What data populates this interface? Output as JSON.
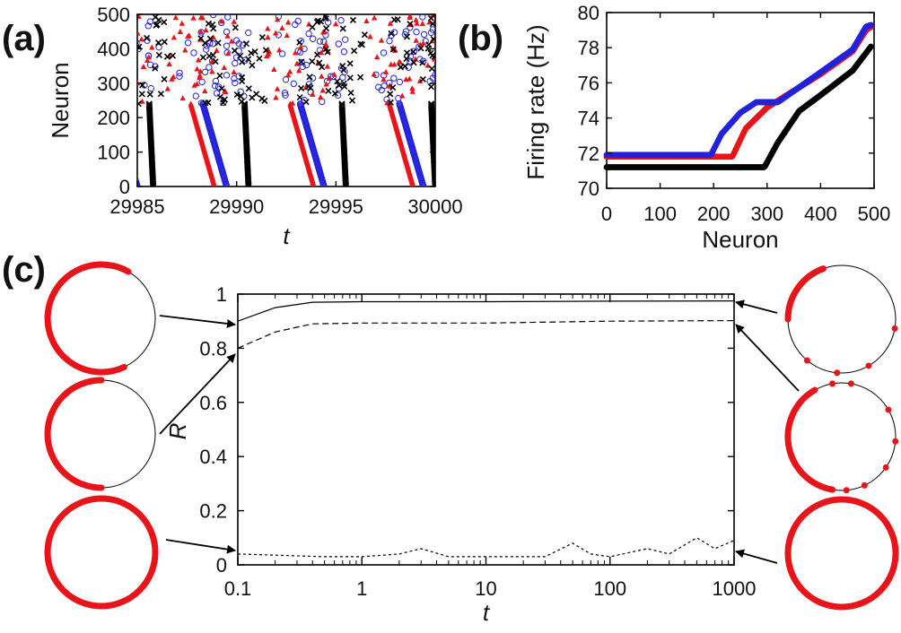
{
  "colors": {
    "red": "#e8141a",
    "blue": "#2222dd",
    "black": "#000000"
  },
  "panels": {
    "a": {
      "label": "(a)"
    },
    "b": {
      "label": "(b)"
    },
    "c": {
      "label": "(c)"
    }
  },
  "chart_data": [
    {
      "id": "a",
      "type": "scatter",
      "xlabel": "t",
      "ylabel": "Neuron",
      "xlim": [
        29985,
        30000
      ],
      "ylim": [
        0,
        500
      ],
      "xticks": [
        "29985",
        "29990",
        "29995",
        "30000"
      ],
      "yticks": [
        "0",
        "100",
        "200",
        "300",
        "400",
        "500"
      ],
      "series": [
        {
          "marker": "circle",
          "color": "blue",
          "waves": [
            [
              29985.0,
              0
            ],
            [
              29985.0,
              500
            ],
            [
              29989.5,
              0
            ],
            [
              29989.5,
              500
            ],
            [
              29994.4,
              0
            ],
            [
              29994.4,
              500
            ],
            [
              29999.4,
              0
            ],
            [
              29999.4,
              500
            ]
          ]
        },
        {
          "marker": "triangle",
          "color": "red",
          "waves": [
            [
              29984.7,
              0
            ],
            [
              29984.7,
              500
            ],
            [
              29988.9,
              0
            ],
            [
              29988.9,
              500
            ],
            [
              29993.9,
              0
            ],
            [
              29993.9,
              500
            ],
            [
              29998.9,
              0
            ],
            [
              29998.9,
              500
            ]
          ]
        },
        {
          "marker": "cross",
          "color": "black",
          "waves": [
            [
              29985.8,
              0
            ],
            [
              29985.8,
              500
            ],
            [
              29990.6,
              0
            ],
            [
              29990.6,
              500
            ],
            [
              29995.5,
              0
            ],
            [
              29995.5,
              500
            ],
            [
              30000.0,
              0
            ],
            [
              30000.0,
              500
            ]
          ]
        }
      ]
    },
    {
      "id": "b",
      "type": "scatter",
      "xlabel": "Neuron",
      "ylabel": "Firing rate (Hz)",
      "xlim": [
        0,
        500
      ],
      "ylim": [
        70,
        80
      ],
      "xticks": [
        "0",
        "100",
        "200",
        "300",
        "400",
        "500"
      ],
      "yticks": [
        "70",
        "72",
        "74",
        "76",
        "78",
        "80"
      ],
      "series": [
        {
          "color": "blue",
          "points": [
            [
              0,
              71.9
            ],
            [
              195,
              71.9
            ],
            [
              215,
              73.1
            ],
            [
              250,
              74.3
            ],
            [
              280,
              74.9
            ],
            [
              320,
              74.9
            ],
            [
              400,
              76.6
            ],
            [
              460,
              77.9
            ],
            [
              485,
              79.2
            ],
            [
              495,
              79.3
            ]
          ]
        },
        {
          "color": "red",
          "points": [
            [
              0,
              71.8
            ],
            [
              235,
              71.8
            ],
            [
              260,
              73.4
            ],
            [
              300,
              74.6
            ],
            [
              400,
              76.5
            ],
            [
              460,
              77.8
            ],
            [
              485,
              79.0
            ],
            [
              495,
              79.2
            ]
          ]
        },
        {
          "color": "black",
          "points": [
            [
              0,
              71.2
            ],
            [
              295,
              71.2
            ],
            [
              320,
              72.6
            ],
            [
              360,
              74.4
            ],
            [
              400,
              75.3
            ],
            [
              460,
              76.7
            ],
            [
              495,
              78.1
            ]
          ]
        }
      ]
    },
    {
      "id": "c",
      "type": "line",
      "xlabel": "t",
      "ylabel": "R",
      "xscale": "log",
      "xlim": [
        0.1,
        1000
      ],
      "ylim": [
        0,
        1
      ],
      "xticks": [
        "0.1",
        "1",
        "10",
        "100",
        "1000"
      ],
      "yticks": [
        "0",
        "0.2",
        "0.4",
        "0.6",
        "0.8",
        "1"
      ],
      "series": [
        {
          "style": "solid",
          "points": [
            [
              0.1,
              0.9
            ],
            [
              0.2,
              0.95
            ],
            [
              0.4,
              0.97
            ],
            [
              1,
              0.972
            ],
            [
              10,
              0.972
            ],
            [
              100,
              0.974
            ],
            [
              1000,
              0.975
            ]
          ]
        },
        {
          "style": "dashed",
          "points": [
            [
              0.1,
              0.8
            ],
            [
              0.2,
              0.86
            ],
            [
              0.4,
              0.89
            ],
            [
              1,
              0.893
            ],
            [
              10,
              0.893
            ],
            [
              100,
              0.9
            ],
            [
              1000,
              0.902
            ]
          ]
        },
        {
          "style": "dotted",
          "points": [
            [
              0.1,
              0.04
            ],
            [
              0.5,
              0.03
            ],
            [
              1,
              0.03
            ],
            [
              2,
              0.04
            ],
            [
              3,
              0.06
            ],
            [
              5,
              0.03
            ],
            [
              10,
              0.03
            ],
            [
              30,
              0.03
            ],
            [
              50,
              0.08
            ],
            [
              70,
              0.04
            ],
            [
              100,
              0.03
            ],
            [
              200,
              0.06
            ],
            [
              300,
              0.04
            ],
            [
              500,
              0.1
            ],
            [
              700,
              0.06
            ],
            [
              1000,
              0.09
            ]
          ]
        }
      ],
      "insets_left": [
        {
          "arc": [
            155,
            390
          ]
        },
        {
          "arc": [
            180,
            360
          ]
        },
        {
          "arc": [
            0,
            360
          ]
        }
      ],
      "insets_right": [
        {
          "arc": [
            270,
            340
          ],
          "dots": [
            100,
            150,
            185,
            220
          ]
        },
        {
          "arc": [
            190,
            330
          ],
          "dots": [
            10,
            60,
            95,
            125,
            155,
            175,
            350
          ]
        },
        {
          "arc": [
            0,
            360
          ]
        }
      ]
    }
  ]
}
